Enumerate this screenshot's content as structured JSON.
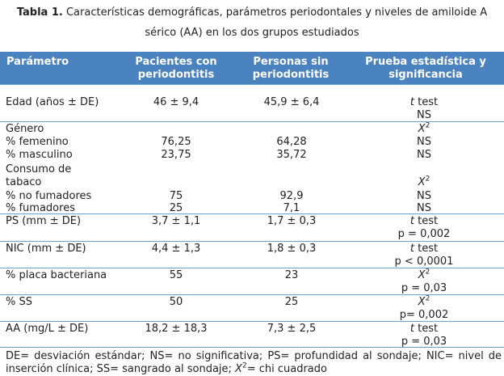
{
  "caption": {
    "label": "Tabla 1.",
    "line1": " Características demográficas, parámetros periodontales y niveles de amiloide A",
    "line2": "sérico (AA) en  los dos grupos estudiados"
  },
  "table": {
    "header": {
      "param": "Parámetro",
      "group1_l1": "Pacientes con",
      "group1_l2": "periodontitis",
      "group2_l1": "Personas sin",
      "group2_l2": "periodontitis",
      "test_l1": "Prueba estadística y",
      "test_l2": "significancia"
    },
    "rows": {
      "edad": {
        "param": "Edad (años ± DE)",
        "g1": "46 ± 9,4",
        "g2": "45,9 ± 6,4",
        "test_a": "t",
        "test_b": " test",
        "sig": "NS"
      },
      "genero": {
        "param": "Género",
        "test_a": "X",
        "test_sup": "2",
        "fem": "% femenino",
        "fem_g1": "76,25",
        "fem_g2": "64,28",
        "fem_sig": "NS",
        "mas": "% masculino",
        "mas_g1": "23,75",
        "mas_g2": "35,72",
        "mas_sig": "NS"
      },
      "tabaco": {
        "param_l1": "Consumo de",
        "param_l2": "tabaco",
        "test_a": "X",
        "test_sup": "2",
        "no": "% no fumadores",
        "no_g1": "75",
        "no_g2": "92,9",
        "no_sig": "NS",
        "si": "% fumadores",
        "si_g1": "25",
        "si_g2": "7,1",
        "si_sig": "NS"
      },
      "ps": {
        "param": "PS (mm ± DE)",
        "g1": "3,7 ± 1,1",
        "g2": "1,7 ± 0,3",
        "test_a": "t",
        "test_b": " test",
        "sig": "p = 0,002"
      },
      "nic": {
        "param": "NIC (mm ± DE)",
        "g1": "4,4 ± 1,3",
        "g2": "1,8 ± 0,3",
        "test_a": "t",
        "test_b": " test",
        "sig": "p < 0,0001"
      },
      "placa": {
        "param": "% placa bacteriana",
        "g1": "55",
        "g2": "23",
        "test_a": "X",
        "test_sup": "2",
        "sig": "p = 0,03"
      },
      "ss": {
        "param": "% SS",
        "g1": "50",
        "g2": "25",
        "test_a": "X",
        "test_sup": "2",
        "sig": "p= 0,002"
      },
      "aa": {
        "param": "AA (mg/L ± DE)",
        "g1": "18,2 ± 18,3",
        "g2": "7,3 ± 2,5",
        "test_a": "t",
        "test_b": " test",
        "sig": "p = 0,03"
      }
    }
  },
  "footnote": {
    "text": "DE= desviación estándar; NS= no significativa; PS= profundidad al sondaje; NIC= nivel de inserción clínica; SS= sangrado al sondaje; ",
    "x": "X",
    "sup": "2",
    "end": "= chi cuadrado"
  },
  "colors": {
    "header_bg": "#4b82c0",
    "rule": "#6aa3d6",
    "header_text": "#ffffff"
  }
}
